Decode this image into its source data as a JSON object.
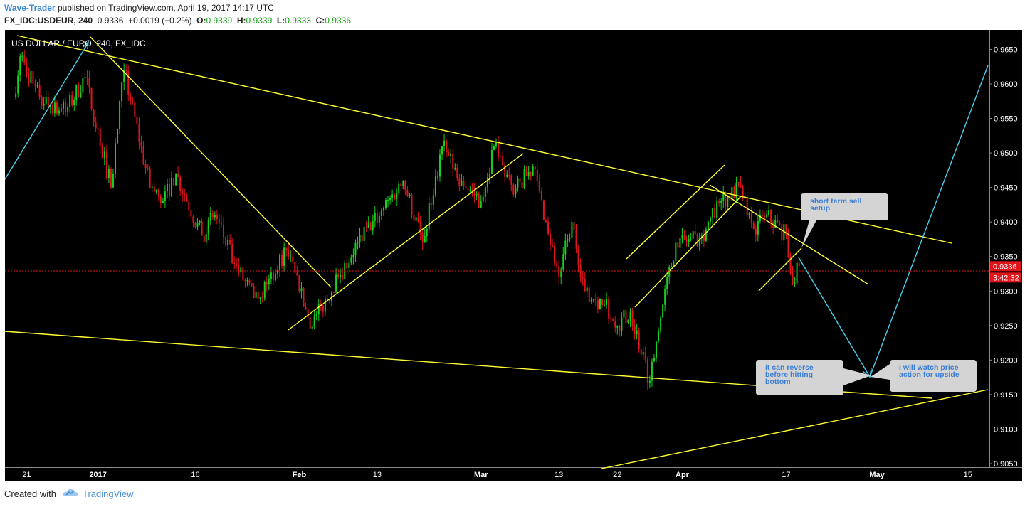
{
  "header": {
    "author": "Wave-Trader",
    "published": "published on TradingView.com, April 19, 2017 14:17 UTC",
    "symbol": "FX_IDC:USDEUR, 240",
    "last": "0.9336",
    "change": "+0.0019 (+0.2%)",
    "o_label": "O:",
    "o_value": "0.9339",
    "h_label": "H:",
    "h_value": "0.9339",
    "l_label": "L:",
    "l_value": "0.9333",
    "c_label": "C:",
    "c_value": "0.9336"
  },
  "chart_data": {
    "type": "candlestick",
    "title": "US DOLLAR / EURO, 240, FX_IDC",
    "y_range": [
      0.905,
      0.967
    ],
    "y_ticks": [
      "0.9650",
      "0.9600",
      "0.9550",
      "0.9500",
      "0.9450",
      "0.9400",
      "0.9350",
      "0.9300",
      "0.9250",
      "0.9200",
      "0.9150",
      "0.9100",
      "0.9050"
    ],
    "x_ticks": [
      "21",
      "2017",
      "16",
      "Feb",
      "13",
      "Mar",
      "13",
      "22",
      "Apr",
      "17",
      "May",
      "15"
    ],
    "bold_x_ticks": [
      "2017",
      "Feb",
      "Mar",
      "Apr",
      "May"
    ],
    "last_price_label": "0.9336",
    "countdown_label": "3:42:32",
    "last_price": 0.9336,
    "price_path": [
      {
        "date": "2016-12-19",
        "price": 0.958
      },
      {
        "date": "2016-12-20",
        "price": 0.964
      },
      {
        "date": "2016-12-23",
        "price": 0.958
      },
      {
        "date": "2016-12-27",
        "price": 0.956
      },
      {
        "date": "2016-12-30",
        "price": 0.961
      },
      {
        "date": "2017-01-03",
        "price": 0.945
      },
      {
        "date": "2017-01-05",
        "price": 0.962
      },
      {
        "date": "2017-01-09",
        "price": 0.945
      },
      {
        "date": "2017-01-11",
        "price": 0.943
      },
      {
        "date": "2017-01-13",
        "price": 0.947
      },
      {
        "date": "2017-01-17",
        "price": 0.938
      },
      {
        "date": "2017-01-19",
        "price": 0.941
      },
      {
        "date": "2017-01-22",
        "price": 0.934
      },
      {
        "date": "2017-01-25",
        "price": 0.929
      },
      {
        "date": "2017-01-27",
        "price": 0.931
      },
      {
        "date": "2017-01-30",
        "price": 0.936
      },
      {
        "date": "2017-02-01",
        "price": 0.93
      },
      {
        "date": "2017-02-03",
        "price": 0.925
      },
      {
        "date": "2017-02-07",
        "price": 0.932
      },
      {
        "date": "2017-02-10",
        "price": 0.937
      },
      {
        "date": "2017-02-14",
        "price": 0.942
      },
      {
        "date": "2017-02-17",
        "price": 0.946
      },
      {
        "date": "2017-02-20",
        "price": 0.937
      },
      {
        "date": "2017-02-23",
        "price": 0.951
      },
      {
        "date": "2017-02-26",
        "price": 0.946
      },
      {
        "date": "2017-03-01",
        "price": 0.943
      },
      {
        "date": "2017-03-03",
        "price": 0.951
      },
      {
        "date": "2017-03-06",
        "price": 0.944
      },
      {
        "date": "2017-03-09",
        "price": 0.948
      },
      {
        "date": "2017-03-13",
        "price": 0.932
      },
      {
        "date": "2017-03-15",
        "price": 0.94
      },
      {
        "date": "2017-03-17",
        "price": 0.93
      },
      {
        "date": "2017-03-20",
        "price": 0.928
      },
      {
        "date": "2017-03-22",
        "price": 0.925
      },
      {
        "date": "2017-03-24",
        "price": 0.927
      },
      {
        "date": "2017-03-27",
        "price": 0.917
      },
      {
        "date": "2017-03-29",
        "price": 0.928
      },
      {
        "date": "2017-03-31",
        "price": 0.937
      },
      {
        "date": "2017-04-04",
        "price": 0.938
      },
      {
        "date": "2017-04-07",
        "price": 0.943
      },
      {
        "date": "2017-04-10",
        "price": 0.945
      },
      {
        "date": "2017-04-12",
        "price": 0.939
      },
      {
        "date": "2017-04-14",
        "price": 0.941
      },
      {
        "date": "2017-04-17",
        "price": 0.938
      },
      {
        "date": "2017-04-18",
        "price": 0.931
      },
      {
        "date": "2017-04-19",
        "price": 0.9336
      }
    ],
    "annotations": [
      {
        "text_lines": [
          "short term sell",
          "setup"
        ]
      },
      {
        "text_lines": [
          "it can reverse",
          "before hitting",
          "bottom"
        ]
      },
      {
        "text_lines": [
          "i will watch price",
          "action for upside"
        ]
      }
    ]
  },
  "footer": {
    "created_with": "Created with",
    "brand": "TradingView"
  },
  "colors": {
    "background": "#000000",
    "up": "#17d11e",
    "down": "#e0141b",
    "trendline": "#ffff33",
    "projection": "#4bcff0",
    "price_line": "#e0141b",
    "callout": "#d4d4d4",
    "callout_text": "#3c7fd6"
  }
}
